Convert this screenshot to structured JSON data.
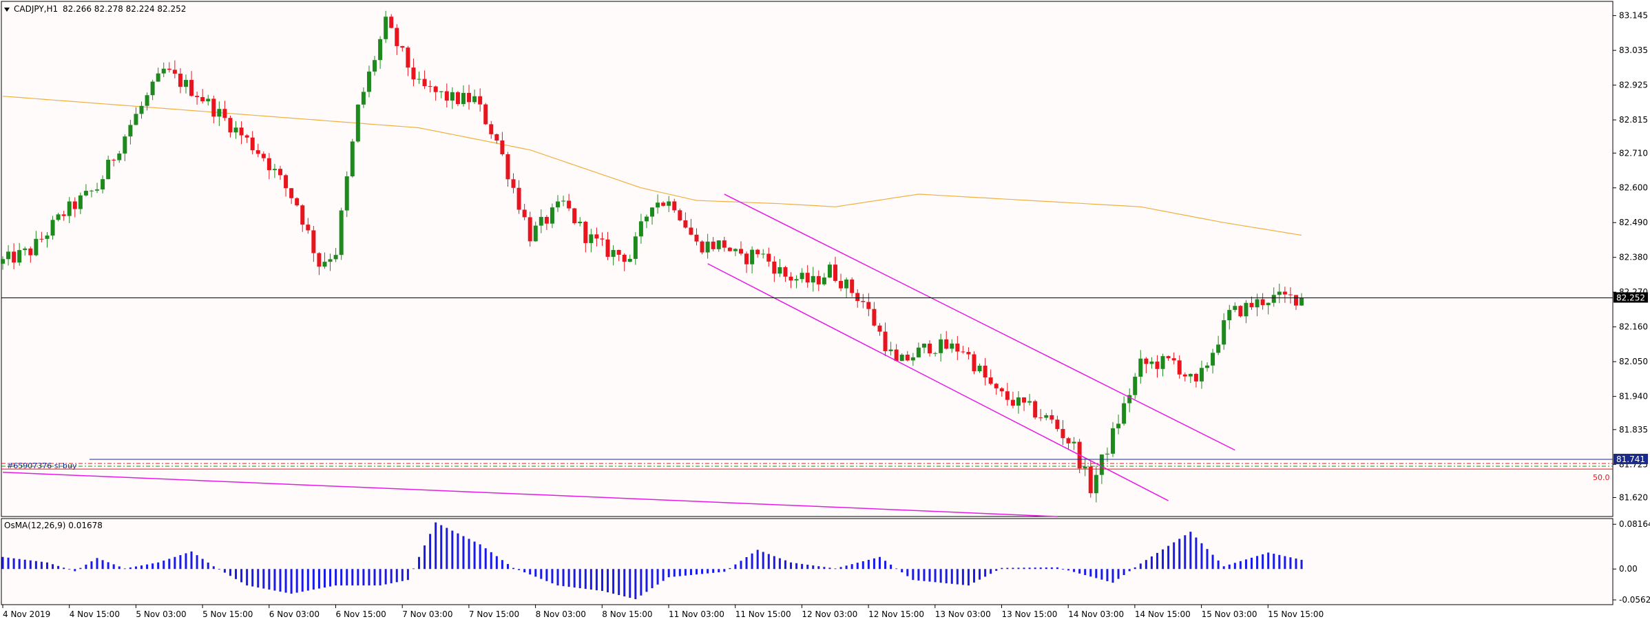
{
  "symbol_label": "CADJPY,H1",
  "ohlc_label": "82.266 82.278 82.224 82.252",
  "osma_label": "OsMA(12,26,9) 0.01678",
  "order_label": "#65907376 sl buy",
  "fib_label": "50.0",
  "colors": {
    "background": "#fffbfb",
    "bull": "#1e8a1e",
    "bear": "#e8141e",
    "ma": "#f0b040",
    "channel": "#e61ae6",
    "osma": "#1a1ae6",
    "bid_tag": "#000000",
    "sl_tag": "#1a2a8a"
  },
  "chart_data": [
    {
      "type": "candlestick",
      "title": "CADJPY,H1",
      "ylim": [
        81.56,
        83.19
      ],
      "yticks": [
        "83.145",
        "83.035",
        "82.925",
        "82.815",
        "82.710",
        "82.600",
        "82.490",
        "82.380",
        "82.270",
        "82.160",
        "82.050",
        "81.940",
        "81.835",
        "81.725",
        "81.620"
      ],
      "xticks": [
        "4 Nov 2019",
        "4 Nov 15:00",
        "5 Nov 03:00",
        "5 Nov 15:00",
        "6 Nov 03:00",
        "6 Nov 15:00",
        "7 Nov 03:00",
        "7 Nov 15:00",
        "8 Nov 03:00",
        "8 Nov 15:00",
        "11 Nov 03:00",
        "11 Nov 15:00",
        "12 Nov 03:00",
        "12 Nov 15:00",
        "13 Nov 03:00",
        "13 Nov 15:00",
        "14 Nov 03:00",
        "14 Nov 15:00",
        "15 Nov 03:00",
        "15 Nov 15:00"
      ],
      "current_price": "82.252",
      "current_price_value": 82.252,
      "stop_price": "81.741",
      "stop_price_value": 81.741,
      "fib_50_value": 81.71,
      "path_points": [
        [
          0,
          82.36
        ],
        [
          6,
          82.4
        ],
        [
          12,
          82.52
        ],
        [
          18,
          82.6
        ],
        [
          24,
          82.8
        ],
        [
          30,
          82.97
        ],
        [
          36,
          82.9
        ],
        [
          42,
          82.8
        ],
        [
          48,
          82.7
        ],
        [
          54,
          82.55
        ],
        [
          58,
          82.36
        ],
        [
          61,
          82.4
        ],
        [
          65,
          82.85
        ],
        [
          70,
          83.12
        ],
        [
          76,
          82.92
        ],
        [
          82,
          82.88
        ],
        [
          86,
          82.88
        ],
        [
          90,
          82.75
        ],
        [
          96,
          82.45
        ],
        [
          102,
          82.55
        ],
        [
          106,
          82.45
        ],
        [
          110,
          82.4
        ],
        [
          114,
          82.38
        ],
        [
          118,
          82.56
        ],
        [
          122,
          82.55
        ],
        [
          126,
          82.42
        ],
        [
          131,
          82.42
        ],
        [
          134,
          82.37
        ],
        [
          137,
          82.4
        ],
        [
          142,
          82.32
        ],
        [
          147,
          82.3
        ],
        [
          150,
          82.34
        ],
        [
          156,
          82.24
        ],
        [
          162,
          82.04
        ],
        [
          168,
          82.1
        ],
        [
          174,
          82.09
        ],
        [
          180,
          81.95
        ],
        [
          186,
          81.9
        ],
        [
          190,
          81.86
        ],
        [
          194,
          81.78
        ],
        [
          197,
          81.65
        ],
        [
          201,
          81.82
        ],
        [
          206,
          82.04
        ],
        [
          212,
          82.05
        ],
        [
          216,
          81.97
        ],
        [
          222,
          82.2
        ],
        [
          229,
          82.25
        ],
        [
          234,
          82.252
        ]
      ],
      "moving_average": [
        [
          0,
          82.89
        ],
        [
          30,
          82.85
        ],
        [
          60,
          82.81
        ],
        [
          75,
          82.79
        ],
        [
          95,
          82.72
        ],
        [
          115,
          82.6
        ],
        [
          125,
          82.56
        ],
        [
          140,
          82.55
        ],
        [
          150,
          82.54
        ],
        [
          165,
          82.58
        ],
        [
          185,
          82.56
        ],
        [
          205,
          82.54
        ],
        [
          220,
          82.49
        ],
        [
          234,
          82.45
        ]
      ],
      "channel_lines": [
        {
          "from": [
            130,
            82.58
          ],
          "to": [
            222,
            81.77
          ]
        },
        {
          "from": [
            127,
            82.36
          ],
          "to": [
            210,
            81.61
          ]
        },
        {
          "from": [
            0,
            81.7
          ],
          "to": [
            190,
            81.56
          ]
        }
      ]
    },
    {
      "type": "bar",
      "title": "OsMA(12,26,9) 0.01678",
      "ylim": [
        -0.065,
        0.092
      ],
      "yticks": [
        "0.08164",
        "0.00",
        "-0.05629"
      ],
      "last_value": 0.01678,
      "profile": [
        [
          0,
          0.022
        ],
        [
          8,
          0.012
        ],
        [
          13,
          -0.004
        ],
        [
          17,
          0.02
        ],
        [
          22,
          0.001
        ],
        [
          28,
          0.012
        ],
        [
          34,
          0.032
        ],
        [
          38,
          0.005
        ],
        [
          44,
          -0.03
        ],
        [
          52,
          -0.045
        ],
        [
          60,
          -0.03
        ],
        [
          68,
          -0.03
        ],
        [
          73,
          -0.02
        ],
        [
          78,
          0.085
        ],
        [
          86,
          0.045
        ],
        [
          92,
          0.002
        ],
        [
          100,
          -0.03
        ],
        [
          108,
          -0.04
        ],
        [
          114,
          -0.055
        ],
        [
          120,
          -0.015
        ],
        [
          130,
          -0.005
        ],
        [
          136,
          0.035
        ],
        [
          142,
          0.012
        ],
        [
          150,
          0.001
        ],
        [
          158,
          0.022
        ],
        [
          164,
          -0.02
        ],
        [
          174,
          -0.03
        ],
        [
          180,
          0.002
        ],
        [
          190,
          0.003
        ],
        [
          200,
          -0.025
        ],
        [
          205,
          0.01
        ],
        [
          214,
          0.068
        ],
        [
          220,
          0.005
        ],
        [
          228,
          0.03
        ],
        [
          234,
          0.017
        ]
      ]
    }
  ]
}
